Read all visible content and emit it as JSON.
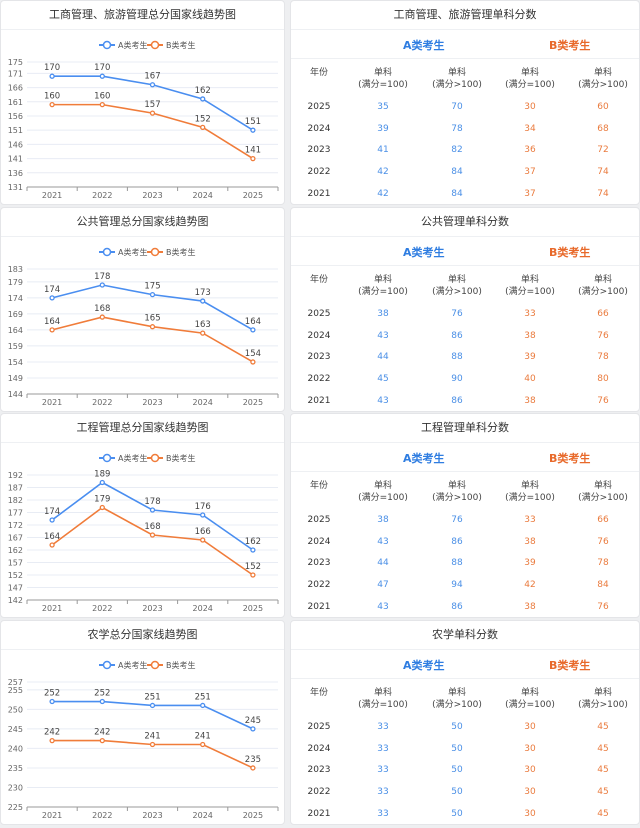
{
  "colors": {
    "a": "#4a8ef0",
    "b": "#f07c3a"
  },
  "legend": {
    "a": "A类考生",
    "b": "B类考生"
  },
  "table_header": {
    "year": "年份",
    "group_a": "A类考生",
    "group_b": "B类考生",
    "cols": [
      [
        "单科",
        "(满分=100)"
      ],
      [
        "单科",
        "(满分>100)"
      ],
      [
        "单科",
        "(满分=100)"
      ],
      [
        "单科",
        "(满分>100)"
      ]
    ]
  },
  "sections": [
    {
      "chart_title": "工商管理、旅游管理总分国家线趋势图",
      "table_title": "工商管理、旅游管理单科分数",
      "chart_data": {
        "type": "line",
        "categories": [
          "2021",
          "2022",
          "2023",
          "2024",
          "2025"
        ],
        "yticks": [
          "131",
          "136",
          "141",
          "146",
          "151",
          "156",
          "161",
          "166",
          "171",
          "175"
        ],
        "ylim": [
          131,
          175
        ],
        "series": [
          {
            "name": "A类考生",
            "values": [
              170,
              170,
              167,
              162,
              151
            ]
          },
          {
            "name": "B类考生",
            "values": [
              160,
              160,
              157,
              152,
              141
            ]
          }
        ]
      },
      "rows": [
        [
          "2025",
          "35",
          "70",
          "30",
          "60"
        ],
        [
          "2024",
          "39",
          "78",
          "34",
          "68"
        ],
        [
          "2023",
          "41",
          "82",
          "36",
          "72"
        ],
        [
          "2022",
          "42",
          "84",
          "37",
          "74"
        ],
        [
          "2021",
          "42",
          "84",
          "37",
          "74"
        ]
      ]
    },
    {
      "chart_title": "公共管理总分国家线趋势图",
      "table_title": "公共管理单科分数",
      "chart_data": {
        "type": "line",
        "categories": [
          "2021",
          "2022",
          "2023",
          "2024",
          "2025"
        ],
        "yticks": [
          "144",
          "149",
          "154",
          "159",
          "164",
          "169",
          "174",
          "179",
          "183"
        ],
        "ylim": [
          144,
          183
        ],
        "series": [
          {
            "name": "A类考生",
            "values": [
              174,
              178,
              175,
              173,
              164
            ]
          },
          {
            "name": "B类考生",
            "values": [
              164,
              168,
              165,
              163,
              154
            ]
          }
        ]
      },
      "rows": [
        [
          "2025",
          "38",
          "76",
          "33",
          "66"
        ],
        [
          "2024",
          "43",
          "86",
          "38",
          "76"
        ],
        [
          "2023",
          "44",
          "88",
          "39",
          "78"
        ],
        [
          "2022",
          "45",
          "90",
          "40",
          "80"
        ],
        [
          "2021",
          "43",
          "86",
          "38",
          "76"
        ]
      ]
    },
    {
      "chart_title": "工程管理总分国家线趋势图",
      "table_title": "工程管理单科分数",
      "chart_data": {
        "type": "line",
        "categories": [
          "2021",
          "2022",
          "2023",
          "2024",
          "2025"
        ],
        "yticks": [
          "142",
          "147",
          "152",
          "157",
          "162",
          "167",
          "172",
          "177",
          "182",
          "187",
          "192"
        ],
        "ylim": [
          142,
          192
        ],
        "series": [
          {
            "name": "A类考生",
            "values": [
              174,
              189,
              178,
              176,
              162
            ]
          },
          {
            "name": "B类考生",
            "values": [
              164,
              179,
              168,
              166,
              152
            ]
          }
        ]
      },
      "rows": [
        [
          "2025",
          "38",
          "76",
          "33",
          "66"
        ],
        [
          "2024",
          "43",
          "86",
          "38",
          "76"
        ],
        [
          "2023",
          "44",
          "88",
          "39",
          "78"
        ],
        [
          "2022",
          "47",
          "94",
          "42",
          "84"
        ],
        [
          "2021",
          "43",
          "86",
          "38",
          "76"
        ]
      ]
    },
    {
      "chart_title": "农学总分国家线趋势图",
      "table_title": "农学单科分数",
      "chart_data": {
        "type": "line",
        "categories": [
          "2021",
          "2022",
          "2023",
          "2024",
          "2025"
        ],
        "yticks": [
          "225",
          "230",
          "235",
          "240",
          "245",
          "250",
          "255",
          "257"
        ],
        "ylim": [
          225,
          257
        ],
        "series": [
          {
            "name": "A类考生",
            "values": [
              252,
              252,
              251,
              251,
              245
            ]
          },
          {
            "name": "B类考生",
            "values": [
              242,
              242,
              241,
              241,
              235
            ]
          }
        ]
      },
      "rows": [
        [
          "2025",
          "33",
          "50",
          "30",
          "45"
        ],
        [
          "2024",
          "33",
          "50",
          "30",
          "45"
        ],
        [
          "2023",
          "33",
          "50",
          "30",
          "45"
        ],
        [
          "2022",
          "33",
          "50",
          "30",
          "45"
        ],
        [
          "2021",
          "33",
          "50",
          "30",
          "45"
        ]
      ]
    }
  ]
}
